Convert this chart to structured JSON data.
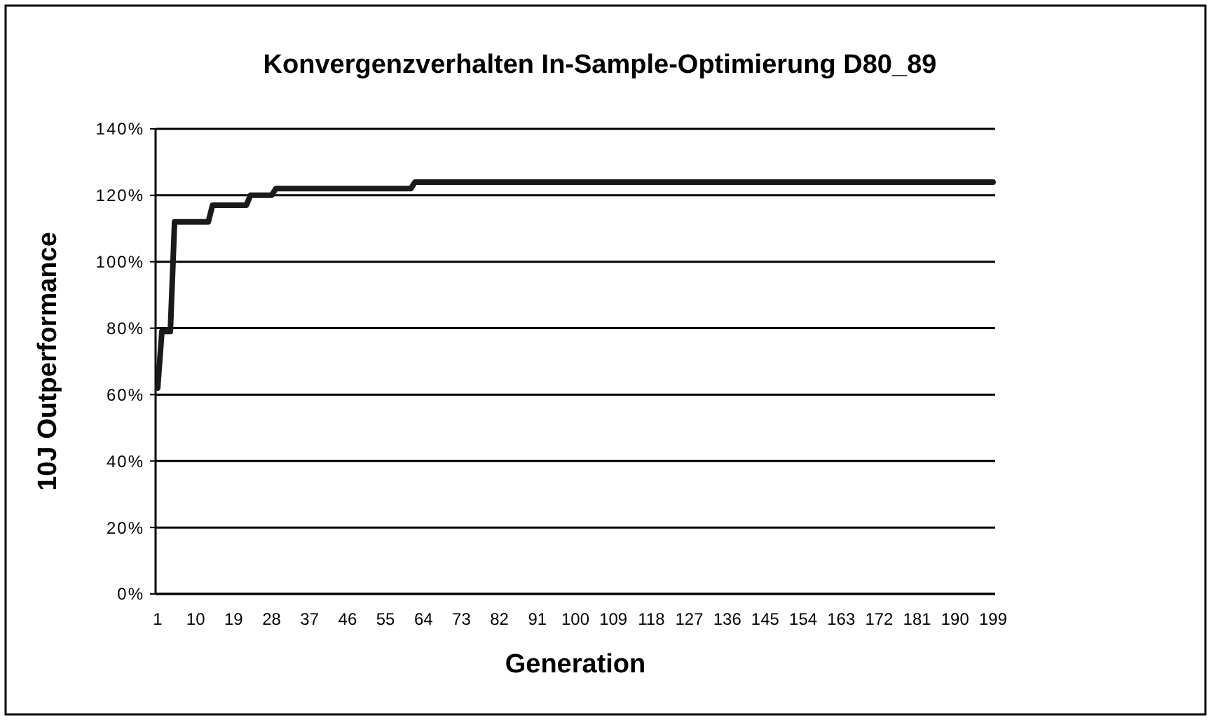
{
  "chart_data": {
    "type": "line",
    "title": "Konvergenzverhalten In-Sample-Optimierung D80_89",
    "xlabel": "Generation",
    "ylabel": "10J Outperformance",
    "series": [
      {
        "color": "#1a1a1a",
        "x": [
          1,
          2,
          4,
          5,
          13,
          14,
          22,
          23,
          28,
          29,
          61,
          62,
          199
        ],
        "values": [
          62,
          79,
          79,
          112,
          112,
          117,
          117,
          120,
          120,
          122,
          122,
          124,
          124
        ]
      }
    ],
    "xlim": [
      0.5,
      199.5
    ],
    "xticks": [
      1,
      10,
      19,
      28,
      37,
      46,
      55,
      64,
      73,
      82,
      91,
      100,
      109,
      118,
      127,
      136,
      145,
      154,
      163,
      172,
      181,
      190,
      199
    ],
    "ylim": [
      0,
      140
    ],
    "yticks": [
      {
        "value": 0,
        "label": "0%"
      },
      {
        "value": 20,
        "label": "20%"
      },
      {
        "value": 40,
        "label": "40%"
      },
      {
        "value": 60,
        "label": "60%"
      },
      {
        "value": 80,
        "label": "80%"
      },
      {
        "value": 100,
        "label": "100%"
      },
      {
        "value": 120,
        "label": "120%"
      },
      {
        "value": 140,
        "label": "140%"
      }
    ],
    "grid": "y",
    "marker": "none",
    "line_style": "solid"
  }
}
